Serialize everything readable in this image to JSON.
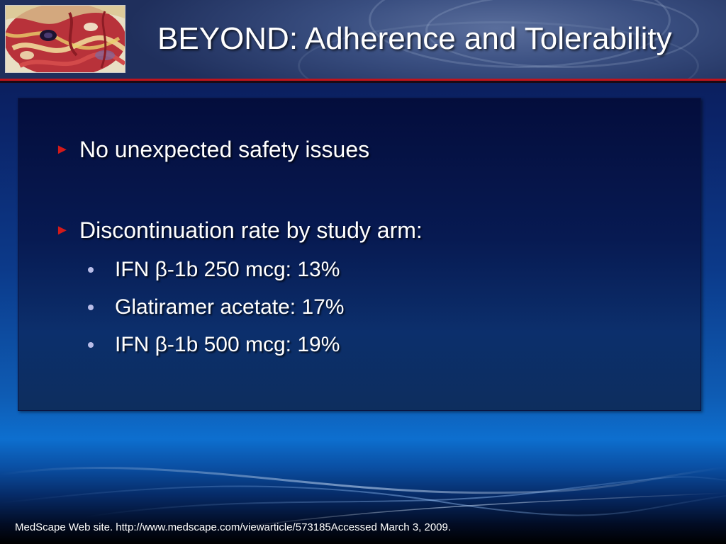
{
  "slide": {
    "title": "BEYOND: Adherence and Tolerability",
    "bullets": [
      {
        "text": "No unexpected safety issues"
      },
      {
        "text": "Discontinuation rate by study arm:",
        "sub": [
          "IFN β-1b 250 mcg: 13%",
          "Glatiramer acetate: 17%",
          "IFN β-1b 500 mcg: 19%"
        ]
      }
    ],
    "footer": "MedScape Web site. http://www.medscape.com/viewarticle/573185Accessed March 3, 2009."
  },
  "colors": {
    "title_text": "#ffffff",
    "bullet_arrow": "#d21a1a",
    "sub_bullet_dot": "#b9bde8",
    "header_rule": "#c0141c"
  },
  "icons": {
    "primary_bullet": "right-pointer-icon",
    "secondary_bullet": "dot-icon"
  }
}
